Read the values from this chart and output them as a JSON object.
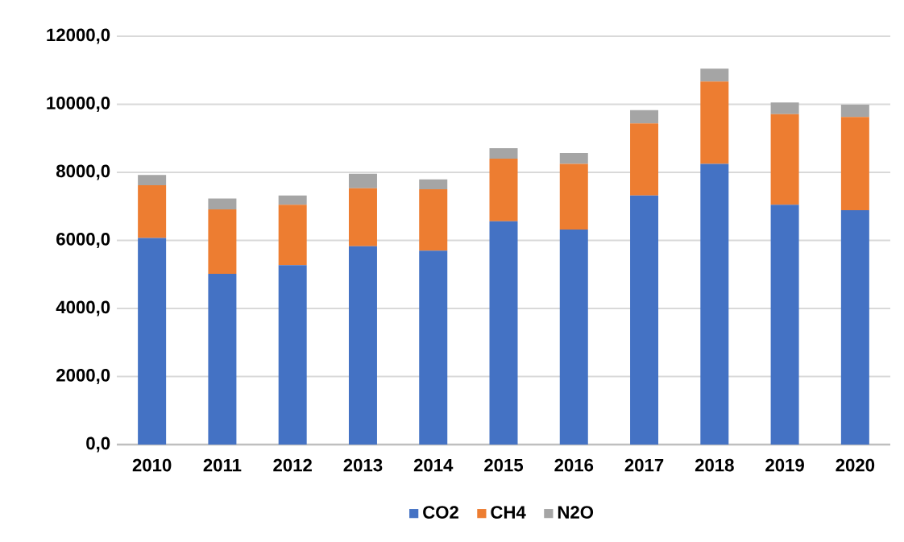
{
  "chart_data": {
    "type": "bar",
    "stacked": true,
    "categories": [
      "2010",
      "2011",
      "2012",
      "2013",
      "2014",
      "2015",
      "2016",
      "2017",
      "2018",
      "2019",
      "2020"
    ],
    "series": [
      {
        "name": "CO2",
        "color": "#4472c4",
        "values": [
          6070,
          5020,
          5270,
          5830,
          5700,
          6560,
          6320,
          7320,
          8250,
          7050,
          6890
        ]
      },
      {
        "name": "CH4",
        "color": "#ed7d31",
        "values": [
          1550,
          1890,
          1780,
          1700,
          1800,
          1840,
          1930,
          2120,
          2420,
          2660,
          2740
        ]
      },
      {
        "name": "N2O",
        "color": "#a5a5a5",
        "values": [
          300,
          320,
          270,
          430,
          290,
          310,
          320,
          390,
          380,
          340,
          360
        ]
      }
    ],
    "ylim": [
      0,
      12000
    ],
    "yticks": [
      {
        "value": 0,
        "label": "0,0"
      },
      {
        "value": 2000,
        "label": "2000,0"
      },
      {
        "value": 4000,
        "label": "4000,0"
      },
      {
        "value": 6000,
        "label": "6000,0"
      },
      {
        "value": 8000,
        "label": "8000,0"
      },
      {
        "value": 10000,
        "label": "10000,0"
      },
      {
        "value": 12000,
        "label": "12000,0"
      }
    ],
    "grid": "y",
    "legend": "bottom"
  }
}
